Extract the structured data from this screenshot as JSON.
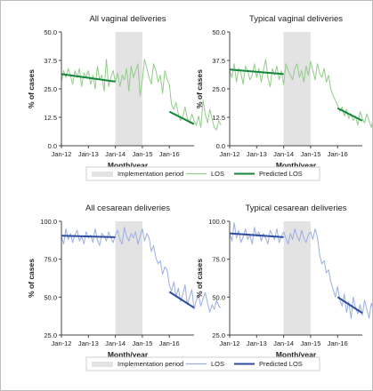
{
  "colors": {
    "vaginal_los": "#93cc8a",
    "vaginal_pred": "#11883a",
    "cesarean_los": "#9aaee3",
    "cesarean_pred": "#2c4ea0",
    "implementation_fill": "#e3e3e3",
    "axis": "#444444"
  },
  "x_ticks": [
    "Jan-12",
    "Jan-13",
    "Jan-14",
    "Jan-15",
    "Jan-16"
  ],
  "legends": [
    {
      "implementation": "Implementation period",
      "los": "LOS",
      "predicted": "Predicted LOS"
    },
    {
      "implementation": "Implementation period",
      "los": "LOS",
      "predicted": "Predicted LOS"
    }
  ],
  "chart_data": [
    {
      "type": "line",
      "title": "All vaginal deliveries",
      "xlabel": "Month/year",
      "ylabel": "% of cases",
      "ylim": [
        0,
        50
      ],
      "yticks": [
        "0.0",
        "12.5",
        "25.0",
        "37.5",
        "50.0"
      ],
      "color_key": "vaginal",
      "x_start": "Jan-12",
      "x_end": "Dec-16",
      "implementation_period": [
        "Jan-14",
        "Jan-15"
      ],
      "series": [
        {
          "name": "LOS",
          "x_start": "Jan-12",
          "values": [
            28,
            33,
            30,
            34,
            31,
            27,
            33,
            30,
            34,
            26,
            32,
            30,
            33,
            27,
            31,
            25,
            35,
            29,
            31,
            24,
            38,
            26,
            30,
            33,
            28,
            32,
            26,
            31,
            29,
            34,
            24,
            35,
            30,
            33,
            36,
            22,
            29,
            38,
            34,
            30,
            27,
            36,
            33,
            28,
            31,
            23,
            33,
            29,
            27,
            18,
            16,
            19,
            14,
            11,
            13,
            17,
            12,
            10,
            14,
            11,
            9,
            13,
            8,
            20,
            14,
            10,
            16,
            12,
            8,
            7,
            11,
            9
          ]
        }
      ],
      "predicted": [
        {
          "name": "Predicted LOS",
          "x": [
            "Jan-12",
            "Jan-14"
          ],
          "y": [
            31.5,
            28.2
          ]
        },
        {
          "name": "Predicted LOS",
          "x": [
            "Jan-16",
            "Dec-16"
          ],
          "y": [
            15.0,
            9.5
          ]
        }
      ]
    },
    {
      "type": "line",
      "title": "Typical vaginal deliveries",
      "xlabel": "Month/year",
      "ylabel": "% of cases",
      "ylim": [
        0,
        50
      ],
      "yticks": [
        "0.0",
        "12.5",
        "25.0",
        "37.5",
        "50.0"
      ],
      "color_key": "vaginal",
      "x_start": "Jan-12",
      "x_end": "Dec-16",
      "implementation_period": [
        "Jan-14",
        "Jan-15"
      ],
      "series": [
        {
          "name": "LOS",
          "x_start": "Jan-12",
          "values": [
            33,
            30,
            36,
            28,
            34,
            32,
            27,
            35,
            33,
            29,
            31,
            36,
            30,
            34,
            28,
            33,
            38,
            30,
            26,
            34,
            31,
            35,
            29,
            33,
            27,
            36,
            33,
            31,
            29,
            34,
            36,
            30,
            33,
            28,
            35,
            31,
            37,
            33,
            29,
            36,
            32,
            30,
            34,
            28,
            31,
            25,
            22,
            20,
            18,
            15,
            17,
            13,
            16,
            12,
            14,
            11,
            13,
            9,
            15,
            12,
            10,
            14,
            11,
            8,
            13,
            12,
            9,
            11,
            13,
            10,
            12,
            11
          ]
        }
      ],
      "predicted": [
        {
          "name": "Predicted LOS",
          "x": [
            "Jan-12",
            "Jan-14"
          ],
          "y": [
            33.5,
            31.5
          ]
        },
        {
          "name": "Predicted LOS",
          "x": [
            "Jan-16",
            "Dec-16"
          ],
          "y": [
            16.5,
            11.0
          ]
        }
      ]
    },
    {
      "type": "line",
      "title": "All cesarean deliveries",
      "xlabel": "Month/year",
      "ylabel": "% of cases",
      "ylim": [
        25,
        100
      ],
      "yticks": [
        "25.0",
        "50.0",
        "75.0",
        "100.0"
      ],
      "color_key": "cesarean",
      "x_start": "Jan-12",
      "x_end": "Dec-16",
      "implementation_period": [
        "Jan-14",
        "Jan-15"
      ],
      "series": [
        {
          "name": "LOS",
          "x_start": "Jan-12",
          "values": [
            90,
            85,
            95,
            88,
            92,
            86,
            91,
            94,
            87,
            90,
            85,
            93,
            89,
            91,
            86,
            95,
            88,
            84,
            92,
            90,
            87,
            93,
            89,
            86,
            91,
            94,
            88,
            85,
            96,
            90,
            87,
            92,
            89,
            93,
            85,
            90,
            95,
            87,
            92,
            89,
            80,
            84,
            76,
            72,
            74,
            65,
            70,
            68,
            58,
            54,
            60,
            50,
            56,
            47,
            52,
            58,
            45,
            50,
            55,
            42,
            48,
            51,
            44,
            49,
            53,
            46,
            40,
            45,
            42,
            48,
            44,
            43
          ]
        }
      ],
      "predicted": [
        {
          "name": "Predicted LOS",
          "x": [
            "Jan-12",
            "Jan-14"
          ],
          "y": [
            90.5,
            89.5
          ]
        },
        {
          "name": "Predicted LOS",
          "x": [
            "Jan-16",
            "Dec-16"
          ],
          "y": [
            53.5,
            43.0
          ]
        }
      ]
    },
    {
      "type": "line",
      "title": "Typical cesarean deliveries",
      "xlabel": "Month/year",
      "ylabel": "% of cases",
      "ylim": [
        25,
        100
      ],
      "yticks": [
        "25.0",
        "50.0",
        "75.0",
        "100.0"
      ],
      "color_key": "cesarean",
      "x_start": "Jan-12",
      "x_end": "Dec-16",
      "implementation_period": [
        "Jan-14",
        "Jan-15"
      ],
      "series": [
        {
          "name": "LOS",
          "x_start": "Jan-12",
          "values": [
            92,
            87,
            99,
            89,
            94,
            86,
            90,
            95,
            88,
            91,
            85,
            96,
            90,
            93,
            87,
            92,
            89,
            85,
            94,
            91,
            88,
            95,
            86,
            90,
            93,
            89,
            85,
            92,
            88,
            95,
            90,
            87,
            94,
            89,
            86,
            91,
            93,
            88,
            95,
            90,
            78,
            72,
            74,
            66,
            68,
            60,
            55,
            50,
            57,
            48,
            44,
            52,
            40,
            47,
            36,
            50,
            43,
            39,
            45,
            38,
            48,
            42,
            36,
            46,
            41,
            38,
            44,
            39,
            42,
            40,
            37,
            39
          ]
        }
      ],
      "predicted": [
        {
          "name": "Predicted LOS",
          "x": [
            "Jan-12",
            "Jan-14"
          ],
          "y": [
            92.0,
            89.5
          ]
        },
        {
          "name": "Predicted LOS",
          "x": [
            "Jan-16",
            "Dec-16"
          ],
          "y": [
            50.0,
            39.5
          ]
        }
      ]
    }
  ]
}
